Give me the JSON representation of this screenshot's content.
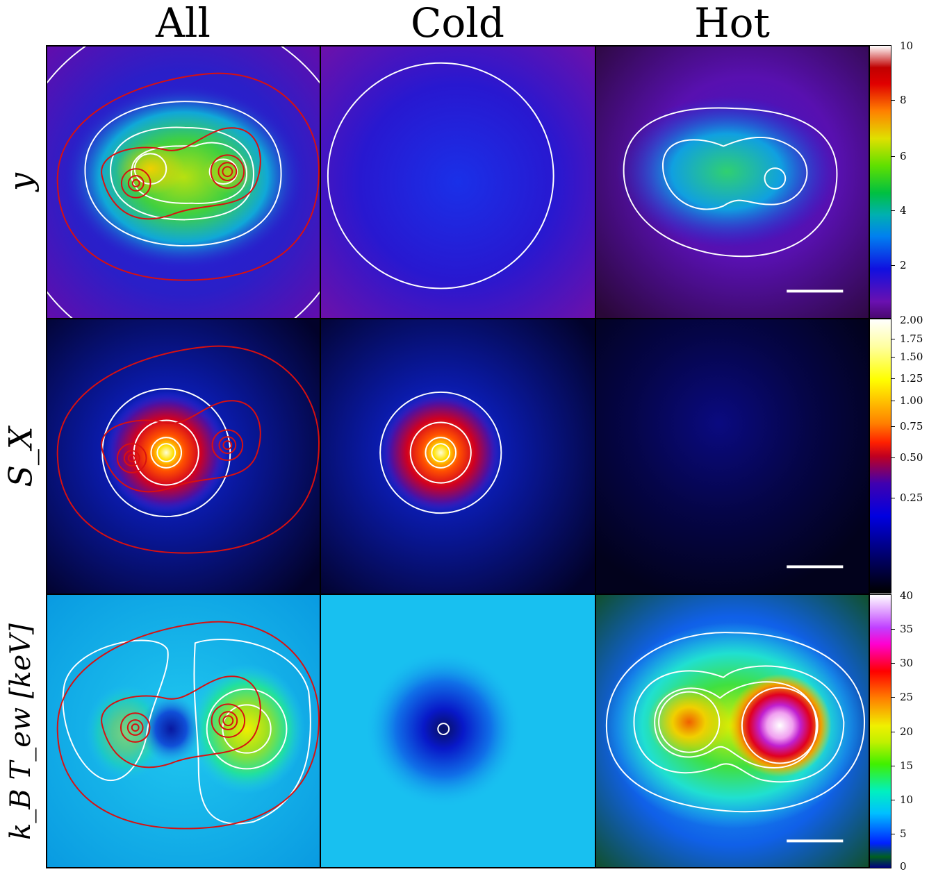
{
  "columns": [
    "All",
    "Cold",
    "Hot"
  ],
  "rows": [
    {
      "label": "y",
      "colorbar_ticks": [
        "10",
        "8",
        "6",
        "4",
        "2"
      ]
    },
    {
      "label": "S_X",
      "colorbar_ticks": [
        "2.00",
        "1.75",
        "1.50",
        "1.25",
        "1.00",
        "0.75",
        "0.50",
        "0.25"
      ]
    },
    {
      "label": "k_B T_ew [keV]",
      "colorbar_ticks": [
        "40",
        "35",
        "30",
        "25",
        "20",
        "15",
        "10",
        "5",
        "0"
      ]
    }
  ],
  "chart_data": {
    "type": "heatmap",
    "layout": "3x3 grid of 2D maps",
    "columns": [
      "All",
      "Cold",
      "Hot"
    ],
    "rows": [
      {
        "quantity": "y",
        "scale": "linear",
        "range": [
          0,
          10
        ],
        "ticks": [
          2,
          4,
          6,
          8,
          10
        ],
        "colormap": "nipy_spectral-like (purple-blue-green-yellow-red-white)"
      },
      {
        "quantity": "S_X",
        "scale": "power/sqrt",
        "range": [
          0,
          2.0
        ],
        "ticks": [
          0.25,
          0.5,
          0.75,
          1.0,
          1.25,
          1.5,
          1.75,
          2.0
        ],
        "colormap": "gist_stern-like (black-blue-red-yellow-white)"
      },
      {
        "quantity": "k_B T_ew [keV]",
        "scale": "linear",
        "range": [
          0,
          40
        ],
        "ticks": [
          0,
          5,
          10,
          15,
          20,
          25,
          30,
          35,
          40
        ],
        "colormap": "gist_ncar-like"
      }
    ],
    "overlays": {
      "white_contours": "iso-contours of the displayed quantity",
      "red_contours": "shown in All column only",
      "scale_bar": "white horizontal bar in Hot column panels"
    }
  }
}
